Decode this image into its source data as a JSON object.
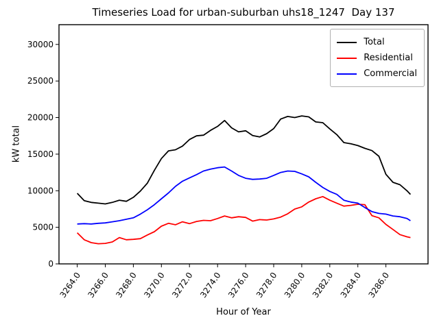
{
  "window": {
    "title": "Timeseries Load for urban-suburban uhs18_1247  Day 137"
  },
  "chart_data": {
    "type": "line",
    "title": "Timeseries Load for urban-suburban uhs18_1247  Day 137",
    "xlabel": "Hour of Year",
    "ylabel": "kW total",
    "xlim": [
      3262.7,
      3289.0
    ],
    "ylim": [
      0,
      32700
    ],
    "grid": false,
    "legend_position": "upper right",
    "xticks": [
      3264,
      3266,
      3268,
      3270,
      3272,
      3274,
      3276,
      3278,
      3280,
      3282,
      3284,
      3286
    ],
    "xtick_labels": [
      "3264.0",
      "3266.0",
      "3268.0",
      "3270.0",
      "3272.0",
      "3274.0",
      "3276.0",
      "3278.0",
      "3280.0",
      "3282.0",
      "3284.0",
      "3286.0"
    ],
    "yticks": [
      0,
      5000,
      10000,
      15000,
      20000,
      25000,
      30000
    ],
    "ytick_labels": [
      "0",
      "5000",
      "10000",
      "15000",
      "20000",
      "25000",
      "30000"
    ],
    "x": [
      3264.0,
      3264.5,
      3265.0,
      3265.5,
      3266.0,
      3266.5,
      3267.0,
      3267.5,
      3268.0,
      3268.5,
      3269.0,
      3269.5,
      3270.0,
      3270.5,
      3271.0,
      3271.5,
      3272.0,
      3272.5,
      3273.0,
      3273.5,
      3274.0,
      3274.5,
      3275.0,
      3275.5,
      3276.0,
      3276.5,
      3277.0,
      3277.5,
      3278.0,
      3278.5,
      3279.0,
      3279.5,
      3280.0,
      3280.5,
      3281.0,
      3281.5,
      3282.0,
      3282.5,
      3283.0,
      3283.5,
      3284.0,
      3284.5,
      3285.0,
      3285.5,
      3286.0,
      3286.5,
      3287.0,
      3287.5,
      3287.75
    ],
    "series": [
      {
        "name": "Total",
        "color": "#000000",
        "values": [
          9650,
          8650,
          8400,
          8300,
          8200,
          8400,
          8700,
          8550,
          9100,
          9950,
          11050,
          12800,
          14400,
          15450,
          15600,
          16100,
          17000,
          17500,
          17600,
          18250,
          18800,
          19600,
          18600,
          18050,
          18200,
          17550,
          17350,
          17800,
          18500,
          19800,
          20150,
          20000,
          20230,
          20100,
          19400,
          19300,
          18450,
          17670,
          16580,
          16420,
          16170,
          15800,
          15490,
          14710,
          12250,
          11150,
          10820,
          10000,
          9500
        ]
      },
      {
        "name": "Residential",
        "color": "#ff0000",
        "values": [
          4250,
          3300,
          2900,
          2750,
          2800,
          3000,
          3600,
          3300,
          3350,
          3450,
          3950,
          4400,
          5150,
          5550,
          5350,
          5750,
          5500,
          5800,
          5950,
          5900,
          6200,
          6550,
          6300,
          6450,
          6350,
          5850,
          6050,
          6000,
          6150,
          6400,
          6850,
          7500,
          7800,
          8450,
          8900,
          9200,
          8700,
          8300,
          7900,
          8000,
          8150,
          8100,
          6600,
          6300,
          5400,
          4700,
          4000,
          3700,
          3600
        ]
      },
      {
        "name": "Commercial",
        "color": "#0000ff",
        "values": [
          5450,
          5500,
          5450,
          5550,
          5600,
          5750,
          5900,
          6100,
          6300,
          6800,
          7400,
          8100,
          8900,
          9700,
          10600,
          11300,
          11750,
          12200,
          12700,
          12950,
          13150,
          13250,
          12700,
          12100,
          11700,
          11550,
          11600,
          11700,
          12100,
          12500,
          12700,
          12650,
          12300,
          11900,
          11150,
          10450,
          9900,
          9500,
          8700,
          8450,
          8300,
          7700,
          7150,
          6900,
          6800,
          6550,
          6450,
          6200,
          5900
        ]
      }
    ]
  }
}
